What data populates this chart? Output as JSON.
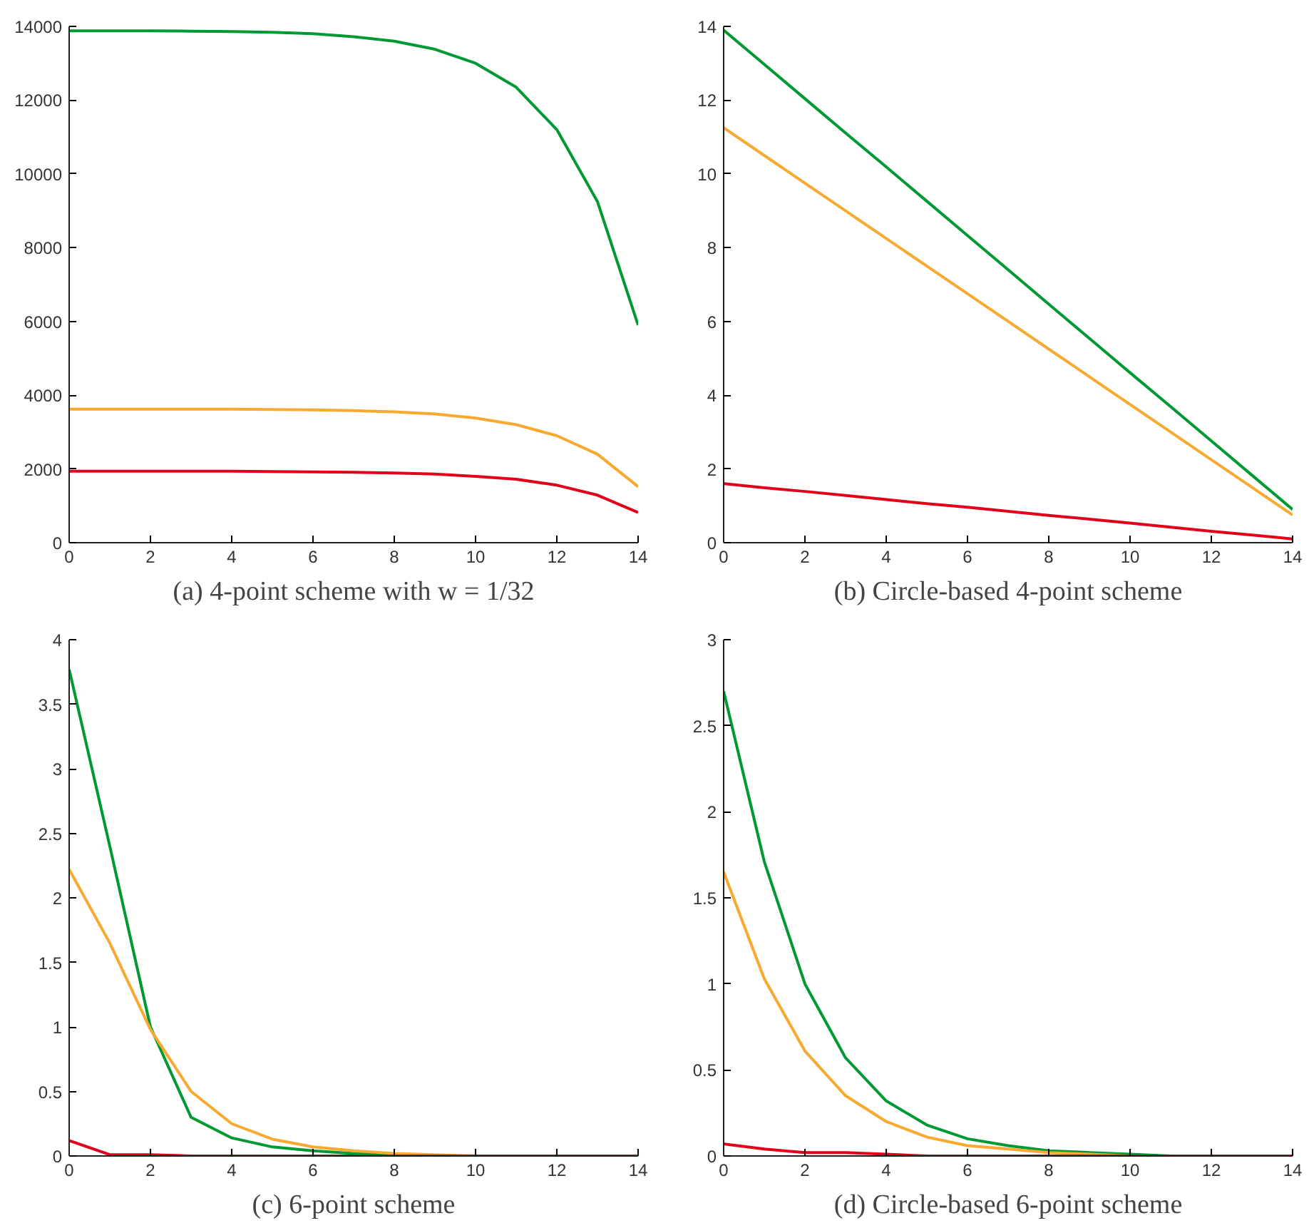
{
  "chart_data": [
    {
      "type": "line",
      "title": "(a) 4-point scheme with w = 1/32",
      "x": [
        0,
        1,
        2,
        3,
        4,
        5,
        6,
        7,
        8,
        9,
        10,
        11,
        12,
        13,
        14
      ],
      "xlim": [
        0,
        14
      ],
      "xticks": [
        0,
        2,
        4,
        6,
        8,
        10,
        12,
        14
      ],
      "ylim": [
        0,
        14000
      ],
      "yticks": [
        0,
        2000,
        4000,
        6000,
        8000,
        10000,
        12000,
        14000
      ],
      "grid": false,
      "series": [
        {
          "color": "#009933",
          "values": [
            13880,
            13880,
            13880,
            13870,
            13860,
            13840,
            13800,
            13720,
            13600,
            13380,
            13000,
            12350,
            11200,
            9250,
            5900
          ]
        },
        {
          "color": "#f8a930",
          "values": [
            3620,
            3620,
            3620,
            3620,
            3620,
            3610,
            3600,
            3580,
            3550,
            3490,
            3380,
            3200,
            2900,
            2400,
            1520
          ]
        },
        {
          "color": "#e3001b",
          "values": [
            1940,
            1940,
            1940,
            1940,
            1940,
            1930,
            1920,
            1910,
            1890,
            1860,
            1800,
            1720,
            1560,
            1290,
            820
          ]
        }
      ]
    },
    {
      "type": "line",
      "title": "(b) Circle-based 4-point scheme",
      "x": [
        0,
        1,
        2,
        3,
        4,
        5,
        6,
        7,
        8,
        9,
        10,
        11,
        12,
        13,
        14
      ],
      "xlim": [
        0,
        14
      ],
      "xticks": [
        0,
        2,
        4,
        6,
        8,
        10,
        12,
        14
      ],
      "ylim": [
        0,
        14
      ],
      "yticks": [
        0,
        2,
        4,
        6,
        8,
        10,
        12,
        14
      ],
      "grid": false,
      "series": [
        {
          "color": "#009933",
          "values": [
            13.9,
            12.97,
            12.04,
            11.11,
            10.19,
            9.26,
            8.33,
            7.4,
            6.47,
            5.54,
            4.61,
            3.69,
            2.76,
            1.83,
            0.9
          ]
        },
        {
          "color": "#f8a930",
          "values": [
            11.25,
            10.5,
            9.75,
            9,
            8.25,
            7.5,
            6.75,
            6,
            5.25,
            4.5,
            3.75,
            3,
            2.25,
            1.5,
            0.75
          ]
        },
        {
          "color": "#e3001b",
          "values": [
            1.6,
            1.49,
            1.39,
            1.28,
            1.17,
            1.06,
            0.96,
            0.85,
            0.74,
            0.64,
            0.53,
            0.42,
            0.31,
            0.21,
            0.1
          ]
        }
      ]
    },
    {
      "type": "line",
      "title": "(c) 6-point scheme",
      "x": [
        0,
        1,
        2,
        3,
        4,
        5,
        6,
        7,
        8,
        9,
        10,
        11,
        12,
        13,
        14
      ],
      "xlim": [
        0,
        14
      ],
      "xticks": [
        0,
        2,
        4,
        6,
        8,
        10,
        12,
        14
      ],
      "ylim": [
        0,
        4
      ],
      "yticks": [
        0,
        0.5,
        1,
        1.5,
        2,
        2.5,
        3,
        3.5,
        4
      ],
      "grid": false,
      "series": [
        {
          "color": "#009933",
          "values": [
            3.77,
            2.4,
            1.0,
            0.3,
            0.14,
            0.07,
            0.04,
            0.02,
            0.01,
            0,
            null,
            null,
            null,
            null,
            null
          ]
        },
        {
          "color": "#f8a930",
          "values": [
            2.22,
            1.65,
            0.98,
            0.5,
            0.25,
            0.13,
            0.07,
            0.04,
            0.02,
            0.01,
            0,
            null,
            null,
            null,
            null
          ]
        },
        {
          "color": "#e3001b",
          "values": [
            0.12,
            0.01,
            0.01,
            0,
            0,
            0,
            0,
            0,
            0,
            0,
            0,
            0,
            0,
            0,
            0
          ]
        }
      ]
    },
    {
      "type": "line",
      "title": "(d) Circle-based 6-point scheme",
      "x": [
        0,
        1,
        2,
        3,
        4,
        5,
        6,
        7,
        8,
        9,
        10,
        11,
        12,
        13,
        14
      ],
      "xlim": [
        0,
        14
      ],
      "xticks": [
        0,
        2,
        4,
        6,
        8,
        10,
        12,
        14
      ],
      "ylim": [
        0,
        3
      ],
      "yticks": [
        0,
        0.5,
        1,
        1.5,
        2,
        2.5,
        3
      ],
      "grid": false,
      "series": [
        {
          "color": "#009933",
          "values": [
            2.7,
            1.71,
            1.0,
            0.57,
            0.32,
            0.18,
            0.1,
            0.06,
            0.03,
            0.02,
            0.01,
            0,
            null,
            null,
            null
          ]
        },
        {
          "color": "#f8a930",
          "values": [
            1.65,
            1.03,
            0.61,
            0.35,
            0.2,
            0.11,
            0.06,
            0.04,
            0.02,
            0.01,
            0,
            null,
            null,
            null,
            null
          ]
        },
        {
          "color": "#e3001b",
          "values": [
            0.07,
            0.04,
            0.02,
            0.02,
            0.01,
            0,
            0,
            0,
            0,
            0,
            0,
            0,
            0,
            0,
            0
          ]
        }
      ]
    }
  ]
}
